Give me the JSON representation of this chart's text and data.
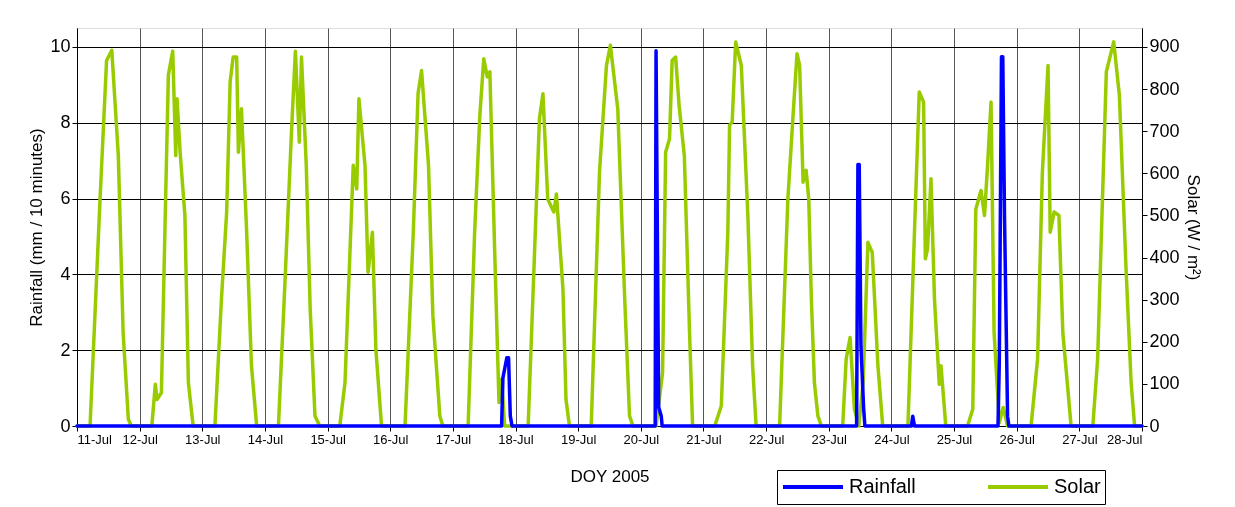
{
  "chart_data": {
    "type": "line",
    "xlabel": "DOY 2005",
    "ylabel": "Rainfall (mm / 10 minutes)",
    "y2label": "Solar (W / m²)",
    "xlim": [
      "2005-07-11",
      "2005-07-28"
    ],
    "xticks": [
      {
        "value": "2005-07-11",
        "label": "11-Jul"
      },
      {
        "value": "2005-07-12",
        "label": "12-Jul"
      },
      {
        "value": "2005-07-13",
        "label": "13-Jul"
      },
      {
        "value": "2005-07-14",
        "label": "14-Jul"
      },
      {
        "value": "2005-07-15",
        "label": "15-Jul"
      },
      {
        "value": "2005-07-16",
        "label": "16-Jul"
      },
      {
        "value": "2005-07-17",
        "label": "17-Jul"
      },
      {
        "value": "2005-07-18",
        "label": "18-Jul"
      },
      {
        "value": "2005-07-19",
        "label": "19-Jul"
      },
      {
        "value": "2005-07-20",
        "label": "20-Jul"
      },
      {
        "value": "2005-07-21",
        "label": "21-Jul"
      },
      {
        "value": "2005-07-22",
        "label": "22-Jul"
      },
      {
        "value": "2005-07-23",
        "label": "23-Jul"
      },
      {
        "value": "2005-07-24",
        "label": "24-Jul"
      },
      {
        "value": "2005-07-25",
        "label": "25-Jul"
      },
      {
        "value": "2005-07-26",
        "label": "26-Jul"
      },
      {
        "value": "2005-07-27",
        "label": "27-Jul"
      },
      {
        "value": "2005-07-28",
        "label": "28-Jul"
      }
    ],
    "ylim": [
      0,
      10.5
    ],
    "yticks": [
      0,
      2,
      4,
      6,
      8,
      10
    ],
    "y2lim": [
      0,
      945
    ],
    "y2ticks": [
      0,
      100,
      200,
      300,
      400,
      500,
      600,
      700,
      800,
      900
    ],
    "grid": true,
    "legend": "bottom right",
    "series": [
      {
        "name": "Rainfall",
        "color": "#0000ff",
        "axis": "y",
        "x": [
          "2005-07-11T00:00",
          "2005-07-17T18:40",
          "2005-07-17T19:10",
          "2005-07-17T20:40",
          "2005-07-17T21:20",
          "2005-07-17T22:00",
          "2005-07-17T22:40",
          "2005-07-20T05:30",
          "2005-07-20T05:50",
          "2005-07-20T06:50",
          "2005-07-20T07:50",
          "2005-07-20T08:10",
          "2005-07-23T10:40",
          "2005-07-23T11:10",
          "2005-07-23T11:40",
          "2005-07-23T12:20",
          "2005-07-23T13:20",
          "2005-07-23T13:50",
          "2005-07-24T07:40",
          "2005-07-24T08:10",
          "2005-07-24T08:50",
          "2005-07-25T16:50",
          "2005-07-25T17:20",
          "2005-07-25T18:10",
          "2005-07-25T18:40",
          "2005-07-25T19:20",
          "2005-07-25T20:30",
          "2005-07-25T21:00",
          "2005-07-28T00:00"
        ],
        "values": [
          0,
          0,
          1.27,
          1.8,
          1.8,
          0.26,
          0,
          0,
          9.9,
          0.5,
          0.26,
          0,
          0,
          6.9,
          6.9,
          2.1,
          0.5,
          0,
          0,
          0.26,
          0,
          0,
          1.67,
          9.74,
          9.74,
          5.5,
          0.26,
          0,
          0
        ]
      },
      {
        "name": "Solar",
        "color": "#99cc00",
        "axis": "y2",
        "x": [
          "2005-07-11T00:00",
          "2005-07-11T05:00",
          "2005-07-11T08:50",
          "2005-07-11T11:20",
          "2005-07-11T13:20",
          "2005-07-11T15:50",
          "2005-07-11T17:40",
          "2005-07-11T19:40",
          "2005-07-11T20:50",
          "2005-07-12T04:40",
          "2005-07-12T06:00",
          "2005-07-12T06:40",
          "2005-07-12T08:20",
          "2005-07-12T09:40",
          "2005-07-12T11:00",
          "2005-07-12T12:40",
          "2005-07-12T13:50",
          "2005-07-12T14:20",
          "2005-07-12T15:30",
          "2005-07-12T17:20",
          "2005-07-12T18:40",
          "2005-07-12T20:30",
          "2005-07-13T04:50",
          "2005-07-13T07:20",
          "2005-07-13T09:20",
          "2005-07-13T10:40",
          "2005-07-13T11:50",
          "2005-07-13T13:10",
          "2005-07-13T13:50",
          "2005-07-13T15:00",
          "2005-07-13T17:00",
          "2005-07-13T18:50",
          "2005-07-13T20:50",
          "2005-07-14T05:10",
          "2005-07-14T07:40",
          "2005-07-14T10:10",
          "2005-07-14T11:40",
          "2005-07-14T13:10",
          "2005-07-14T14:00",
          "2005-07-14T15:50",
          "2005-07-14T17:20",
          "2005-07-14T19:10",
          "2005-07-14T21:00",
          "2005-07-15T04:40",
          "2005-07-15T06:40",
          "2005-07-15T09:50",
          "2005-07-15T11:10",
          "2005-07-15T12:00",
          "2005-07-15T14:20",
          "2005-07-15T15:30",
          "2005-07-15T17:10",
          "2005-07-15T18:30",
          "2005-07-15T20:40",
          "2005-07-16T05:40",
          "2005-07-16T08:50",
          "2005-07-16T10:40",
          "2005-07-16T12:00",
          "2005-07-16T14:40",
          "2005-07-16T16:20",
          "2005-07-16T19:00",
          "2005-07-16T20:10",
          "2005-07-17T05:50",
          "2005-07-17T08:20",
          "2005-07-17T10:20",
          "2005-07-17T11:50",
          "2005-07-17T13:10",
          "2005-07-17T14:10",
          "2005-07-17T16:10",
          "2005-07-17T17:40",
          "2005-07-17T18:40",
          "2005-07-17T19:50",
          "2005-07-18T04:50",
          "2005-07-18T07:20",
          "2005-07-18T09:10",
          "2005-07-18T10:30",
          "2005-07-18T12:20",
          "2005-07-18T14:40",
          "2005-07-18T15:40",
          "2005-07-18T18:10",
          "2005-07-18T19:20",
          "2005-07-18T20:40",
          "2005-07-19T05:00",
          "2005-07-19T08:10",
          "2005-07-19T10:50",
          "2005-07-19T12:20",
          "2005-07-19T15:10",
          "2005-07-19T17:50",
          "2005-07-19T19:40",
          "2005-07-19T21:00",
          "2005-07-20T05:50",
          "2005-07-20T08:20",
          "2005-07-20T09:30",
          "2005-07-20T11:00",
          "2005-07-20T12:00",
          "2005-07-20T13:20",
          "2005-07-20T14:40",
          "2005-07-20T16:40",
          "2005-07-20T18:40",
          "2005-07-20T19:50",
          "2005-07-21T04:20",
          "2005-07-21T06:50",
          "2005-07-21T09:20",
          "2005-07-21T10:00",
          "2005-07-21T11:00",
          "2005-07-21T12:20",
          "2005-07-21T14:30",
          "2005-07-21T17:00",
          "2005-07-21T18:50",
          "2005-07-21T20:10",
          "2005-07-22T05:10",
          "2005-07-22T08:20",
          "2005-07-22T10:10",
          "2005-07-22T11:50",
          "2005-07-22T12:50",
          "2005-07-22T14:10",
          "2005-07-22T15:20",
          "2005-07-22T16:20",
          "2005-07-22T17:20",
          "2005-07-22T18:30",
          "2005-07-22T19:50",
          "2005-07-22T21:10",
          "2005-07-23T05:20",
          "2005-07-23T06:40",
          "2005-07-23T08:10",
          "2005-07-23T09:50",
          "2005-07-23T11:30",
          "2005-07-23T13:10",
          "2005-07-23T15:00",
          "2005-07-23T16:40",
          "2005-07-23T18:50",
          "2005-07-23T20:40",
          "2005-07-24T06:20",
          "2005-07-24T08:50",
          "2005-07-24T10:40",
          "2005-07-24T12:20",
          "2005-07-24T13:00",
          "2005-07-24T13:50",
          "2005-07-24T15:10",
          "2005-07-24T16:30",
          "2005-07-24T18:20",
          "2005-07-24T19:00",
          "2005-07-24T20:50",
          "2005-07-25T05:10",
          "2005-07-25T07:10",
          "2005-07-25T08:20",
          "2005-07-25T10:20",
          "2005-07-25T11:40",
          "2005-07-25T12:50",
          "2005-07-25T14:10",
          "2005-07-25T15:20",
          "2005-07-25T17:20",
          "2005-07-25T18:50",
          "2005-07-25T20:30",
          "2005-07-26T05:30",
          "2005-07-26T08:00",
          "2005-07-26T09:50",
          "2005-07-26T12:00",
          "2005-07-26T12:50",
          "2005-07-26T14:20",
          "2005-07-26T16:10",
          "2005-07-26T17:40",
          "2005-07-26T20:50",
          "2005-07-27T05:10",
          "2005-07-27T07:00",
          "2005-07-27T10:20",
          "2005-07-27T13:10",
          "2005-07-27T15:20",
          "2005-07-27T17:50",
          "2005-07-27T19:50",
          "2005-07-27T21:10",
          "2005-07-28T00:00"
        ],
        "values": [
          0,
          0,
          539,
          868,
          892,
          642,
          222,
          16,
          0,
          0,
          99,
          63,
          79,
          460,
          833,
          890,
          642,
          777,
          650,
          500,
          103,
          0,
          0,
          301,
          508,
          817,
          876,
          876,
          650,
          753,
          460,
          143,
          0,
          0,
          341,
          698,
          890,
          674,
          876,
          619,
          278,
          24,
          0,
          0,
          103,
          619,
          563,
          777,
          619,
          365,
          460,
          182,
          0,
          0,
          460,
          790,
          844,
          619,
          262,
          24,
          0,
          0,
          460,
          738,
          872,
          829,
          841,
          381,
          56,
          111,
          0,
          0,
          420,
          730,
          789,
          539,
          508,
          551,
          325,
          63,
          0,
          0,
          603,
          856,
          904,
          753,
          301,
          24,
          0,
          0,
          127,
          650,
          682,
          868,
          876,
          761,
          642,
          222,
          0,
          0,
          48,
          460,
          714,
          722,
          912,
          856,
          500,
          143,
          0,
          0,
          539,
          722,
          884,
          856,
          579,
          607,
          539,
          301,
          103,
          24,
          0,
          0,
          159,
          210,
          40,
          0,
          103,
          436,
          412,
          143,
          0,
          0,
          460,
          793,
          769,
          397,
          420,
          587,
          301,
          99,
          143,
          0,
          0,
          40,
          515,
          559,
          500,
          619,
          769,
          222,
          8,
          44,
          0,
          0,
          159,
          603,
          856,
          460,
          508,
          500,
          222,
          0,
          0,
          159,
          841,
          912,
          785,
          381,
          103,
          0,
          0
        ]
      }
    ]
  }
}
